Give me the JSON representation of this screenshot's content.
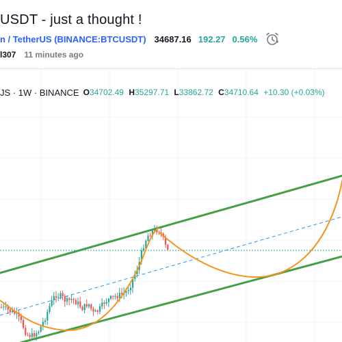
{
  "header": {
    "title": "USDT - just a thought !",
    "symbol_link": "n / TetherUS (BINANCE:BTCUSDT)",
    "price": "34687.16",
    "change": "192.27",
    "change_pct": "0.56%",
    "author": "l307",
    "posted": "11 minutes ago",
    "alarm_icon": "alarm-clock-icon"
  },
  "legend": {
    "pair_interval_exchange": "JS · 1W · BINANCE",
    "open_label": "O",
    "open": "34702.49",
    "high_label": "H",
    "high": "35297.71",
    "low_label": "L",
    "low": "33862.72",
    "close_label": "C",
    "close": "34710.64",
    "change": "+10.30 (+0.03%)"
  },
  "colors": {
    "up": "#26a69a",
    "down": "#ef5350",
    "channel": "#43a047",
    "curve": "#f7931a",
    "midline": "#2196f3",
    "price_line": "#26a69a",
    "link": "#2962ff",
    "text": "#131722",
    "muted": "#787b86"
  },
  "drawings": {
    "upper_channel": "green trend line",
    "lower_channel": "green trend line",
    "middle_line": "dashed blue line",
    "arc": "orange curve"
  }
}
